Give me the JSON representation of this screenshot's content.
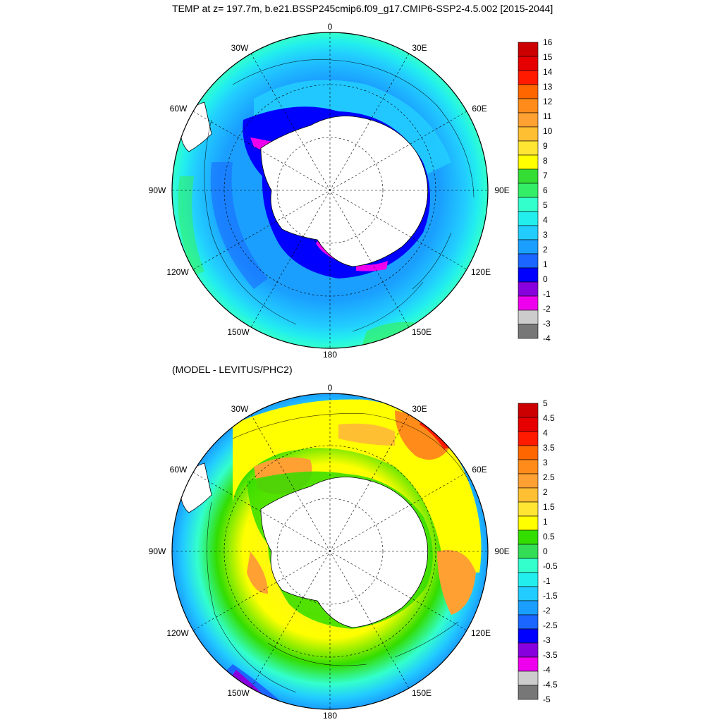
{
  "titles": {
    "top": "TEMP at z= 197.7m, b.e21.BSSP245cmip6.f09_g17.CMIP6-SSP2-4.5.002 [2015-2044]",
    "bottom": "(MODEL - LEVITUS/PHC2)"
  },
  "longitude_labels": [
    "0",
    "30E",
    "60E",
    "90E",
    "120E",
    "150E",
    "180",
    "150W",
    "120W",
    "90W",
    "60W",
    "30W"
  ],
  "top_panel": {
    "colorbar_labels": [
      "16",
      "15",
      "14",
      "13",
      "12",
      "11",
      "10",
      "9",
      "8",
      "7",
      "6",
      "5",
      "4",
      "3",
      "2",
      "1",
      "0",
      "-1",
      "-2",
      "-3",
      "-4"
    ],
    "colorbar_colors": [
      "#cc0000",
      "#e60000",
      "#ff1a00",
      "#ff6600",
      "#ff8c1a",
      "#ffa033",
      "#ffbf33",
      "#ffe633",
      "#ffff00",
      "#33dd33",
      "#33ee66",
      "#33ffcc",
      "#22eeee",
      "#22ccff",
      "#1a9fff",
      "#1a66ff",
      "#0000ff",
      "#8800dd",
      "#ee00ee",
      "#cccccc",
      "#777777"
    ]
  },
  "bottom_panel": {
    "colorbar_labels": [
      "5",
      "4.5",
      "4",
      "3.5",
      "3",
      "2.5",
      "2",
      "1.5",
      "1",
      "0.5",
      "0",
      "-0.5",
      "-1",
      "-1.5",
      "-2",
      "-2.5",
      "-3",
      "-3.5",
      "-4",
      "-4.5",
      "-5"
    ],
    "colorbar_colors": [
      "#cc0000",
      "#e60000",
      "#ff1a00",
      "#ff6600",
      "#ff8c1a",
      "#ffa033",
      "#ffbf33",
      "#ffe633",
      "#ffff00",
      "#33dd00",
      "#33dd55",
      "#33ffcc",
      "#22eeee",
      "#22ccff",
      "#1a9fff",
      "#1a66ff",
      "#0000ff",
      "#8800dd",
      "#ee00ee",
      "#cccccc",
      "#777777"
    ]
  }
}
